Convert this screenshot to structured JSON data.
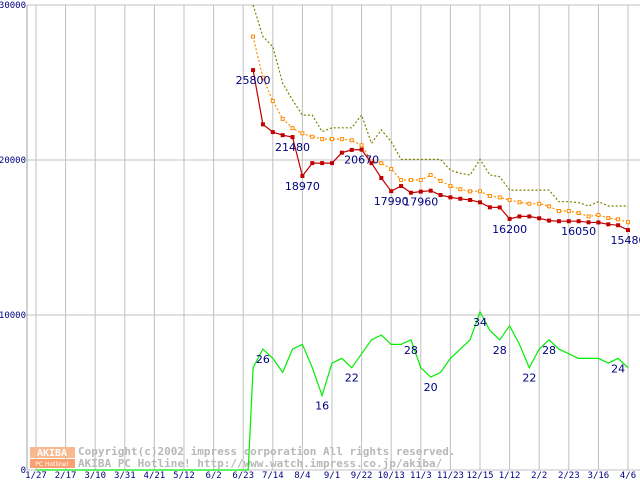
{
  "chart_data": {
    "type": "line",
    "title": "",
    "xlabel": "",
    "ylabel": "",
    "ylim": [
      0,
      30000
    ],
    "grid": true,
    "x_tick_labels": [
      "1/27",
      "2/17",
      "3/10",
      "3/31",
      "4/21",
      "5/12",
      "6/2",
      "6/23",
      "7/14",
      "8/4",
      "9/1",
      "9/22",
      "10/13",
      "11/3",
      "11/23",
      "12/15",
      "1/12",
      "2/2",
      "2/23",
      "3/16",
      "4/6"
    ],
    "x_weeks_between_ticks": 3,
    "y_tick_labels": [
      "30000",
      "20000",
      "10000",
      "0"
    ],
    "y_tick_values": [
      30000,
      20000,
      10000,
      0
    ],
    "series_start_week": 22,
    "series": [
      {
        "name": "max",
        "color": "#808000",
        "style": "dotted",
        "values": [
          30000,
          27960,
          27310,
          24950,
          23870,
          22900,
          22900,
          21830,
          22080,
          22080,
          22080,
          22900,
          21080,
          21940,
          21180,
          20040,
          20040,
          20040,
          20040,
          20040,
          19350,
          19140,
          19030,
          20040,
          19030,
          18920,
          18060,
          18060,
          18060,
          18060,
          18060,
          17310,
          17310,
          17250,
          17030,
          17310,
          17030,
          17030,
          17030
        ]
      },
      {
        "name": "average",
        "color": "#ff8c00",
        "style": "dotted-square",
        "values": [
          27960,
          25310,
          23810,
          22650,
          22060,
          21720,
          21500,
          21350,
          21350,
          21350,
          21270,
          20950,
          19910,
          19800,
          19420,
          18710,
          18710,
          18710,
          19030,
          18650,
          18320,
          18110,
          17980,
          17980,
          17680,
          17590,
          17420,
          17270,
          17180,
          17180,
          17010,
          16710,
          16710,
          16580,
          16360,
          16450,
          16260,
          16170,
          15990
        ]
      },
      {
        "name": "min",
        "color": "#c00000",
        "style": "solid-square",
        "values": [
          25800,
          22300,
          21800,
          21600,
          21480,
          18970,
          19800,
          19800,
          19800,
          20470,
          20650,
          20670,
          19800,
          18840,
          17990,
          18320,
          17890,
          17960,
          18020,
          17740,
          17590,
          17500,
          17420,
          17270,
          16950,
          16940,
          16200,
          16360,
          16360,
          16240,
          16090,
          16050,
          16050,
          16050,
          15980,
          15970,
          15850,
          15790,
          15480
        ],
        "labels": [
          {
            "index": 0,
            "text": "25800"
          },
          {
            "index": 4,
            "text": "21480"
          },
          {
            "index": 5,
            "text": "18970"
          },
          {
            "index": 11,
            "text": "20670"
          },
          {
            "index": 14,
            "text": "17990"
          },
          {
            "index": 17,
            "text": "17960"
          },
          {
            "index": 26,
            "text": "16200"
          },
          {
            "index": 33,
            "text": "16050"
          },
          {
            "index": 38,
            "text": "15480"
          }
        ]
      },
      {
        "name": "count",
        "color": "#00ee00",
        "style": "solid",
        "scale": 300,
        "leading_zero": true,
        "values": [
          22,
          26,
          24,
          21,
          26,
          27,
          22,
          16,
          23,
          24,
          22,
          25,
          28,
          29,
          27,
          27,
          28,
          22,
          20,
          21,
          24,
          26,
          28,
          34,
          30,
          28,
          31,
          27,
          22,
          26,
          28,
          26,
          25,
          24,
          24,
          24,
          23,
          24,
          22
        ],
        "labels": [
          {
            "index": 1,
            "text": "26"
          },
          {
            "index": 7,
            "text": "16"
          },
          {
            "index": 10,
            "text": "22"
          },
          {
            "index": 16,
            "text": "28"
          },
          {
            "index": 18,
            "text": "20"
          },
          {
            "index": 23,
            "text": "34"
          },
          {
            "index": 25,
            "text": "28"
          },
          {
            "index": 28,
            "text": "22"
          },
          {
            "index": 30,
            "text": "28"
          },
          {
            "index": 37,
            "text": "24"
          }
        ]
      }
    ]
  },
  "watermark": {
    "logo_top": "AKIBA",
    "logo_bottom": "PC Hotline!",
    "line1": "Copyright(c)2002 impress corporation All rights reserved.",
    "line2": "AKIBA PC Hotline!  http://www.watch.impress.co.jp/akiba/"
  }
}
